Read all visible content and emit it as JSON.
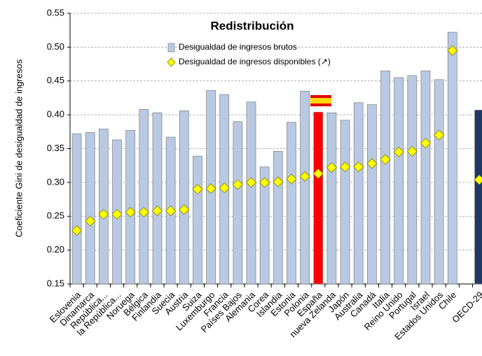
{
  "chart_data": {
    "type": "bar_dot",
    "title": "Redistribución",
    "y_label": "Coeficiente Gini de desigualdad de ingresos",
    "categories": [
      "Eslovenia",
      "Dinamarca",
      "República...",
      "la República...",
      "Noruega",
      "Bélgica",
      "Finlandia",
      "Suecia",
      "Austria",
      "Suiza",
      "Luxemburgo",
      "Francia",
      "Países Bajos",
      "Alemania",
      "Corea",
      "Islandia",
      "Estonia",
      "Polonia",
      "España",
      "nueva Zelanda",
      "Japón",
      "Australia",
      "Canadá",
      "Italia",
      "Reino Unido",
      "Portugal",
      "Israel",
      "Estados Unidos",
      "Chile",
      null,
      "OECD-29"
    ],
    "series": [
      {
        "name": "Desigualdad de ingresos brutos",
        "color": "#b9c9e3",
        "point_colors": [
          null,
          null,
          null,
          null,
          null,
          null,
          null,
          null,
          null,
          null,
          null,
          null,
          null,
          null,
          null,
          null,
          null,
          null,
          "#ff0000",
          null,
          null,
          null,
          null,
          null,
          null,
          null,
          null,
          null,
          null,
          null,
          "#1f3864"
        ],
        "values": [
          0.372,
          0.374,
          0.379,
          0.363,
          0.377,
          0.408,
          0.403,
          0.367,
          0.406,
          0.339,
          0.436,
          0.43,
          0.39,
          0.419,
          0.323,
          0.346,
          0.389,
          0.435,
          0.404,
          0.403,
          0.392,
          0.418,
          0.415,
          0.465,
          0.455,
          0.458,
          0.465,
          0.452,
          0.522,
          null,
          0.407
        ]
      },
      {
        "name": "Desigualdad de ingresos disponibles (↗)",
        "color": "#ffff00",
        "values": [
          0.229,
          0.243,
          0.253,
          0.253,
          0.256,
          0.256,
          0.258,
          0.258,
          0.26,
          0.29,
          0.291,
          0.292,
          0.297,
          0.3,
          0.3,
          0.301,
          0.305,
          0.309,
          0.313,
          0.322,
          0.323,
          0.323,
          0.328,
          0.334,
          0.345,
          0.346,
          0.358,
          0.37,
          0.495,
          null,
          0.304
        ]
      }
    ],
    "ylim": [
      0.15,
      0.55
    ],
    "yticks": [
      0.15,
      {
        "value": 0.2,
        "label": "0.20"
      },
      0.25,
      {
        "value": 0.3,
        "label": "0.30"
      },
      0.35,
      {
        "value": 0.4,
        "label": "0.40"
      },
      0.45,
      {
        "value": 0.5,
        "label": "0.50"
      },
      0.55
    ],
    "grid": true
  }
}
